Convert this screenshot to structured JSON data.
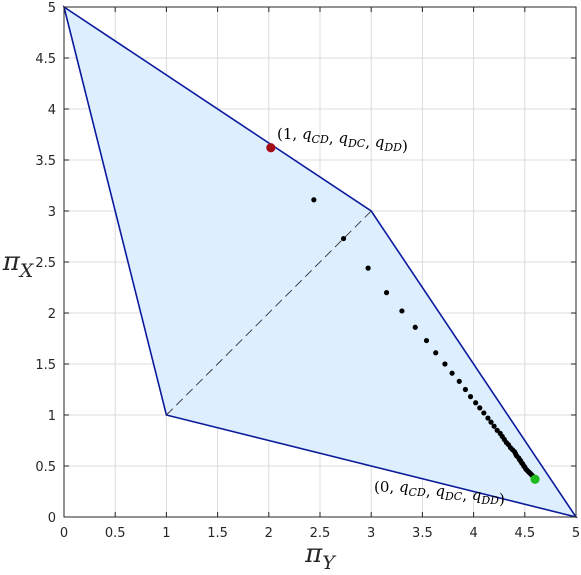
{
  "chart_data": {
    "type": "scatter",
    "title": "",
    "xlabel": "π_Y",
    "ylabel": "π_X",
    "xlim": [
      0,
      5
    ],
    "ylim": [
      0,
      5
    ],
    "xticks": [
      "0",
      "0.5",
      "1",
      "1.5",
      "2",
      "2.5",
      "3",
      "3.5",
      "4",
      "4.5",
      "5"
    ],
    "yticks": [
      "0",
      "0.5",
      "1",
      "1.5",
      "2",
      "2.5",
      "3",
      "3.5",
      "4",
      "4.5",
      "5"
    ],
    "grid": true,
    "feasible_region": {
      "vertices": [
        [
          0,
          5
        ],
        [
          3,
          3
        ],
        [
          5,
          0
        ],
        [
          1,
          1
        ]
      ],
      "fill_color": "#ddeeff",
      "edge_color": "#0b1a9c"
    },
    "dashed_line": {
      "from": [
        1,
        1
      ],
      "to": [
        3,
        3
      ]
    },
    "trajectory_points": [
      [
        2.44,
        3.11
      ],
      [
        2.73,
        2.73
      ],
      [
        2.97,
        2.44
      ],
      [
        3.15,
        2.2
      ],
      [
        3.3,
        2.02
      ],
      [
        3.43,
        1.86
      ],
      [
        3.54,
        1.73
      ],
      [
        3.63,
        1.61
      ],
      [
        3.72,
        1.5
      ],
      [
        3.79,
        1.41
      ],
      [
        3.86,
        1.33
      ],
      [
        3.92,
        1.25
      ],
      [
        3.97,
        1.18
      ],
      [
        4.02,
        1.12
      ],
      [
        4.06,
        1.07
      ],
      [
        4.1,
        1.02
      ],
      [
        4.14,
        0.97
      ],
      [
        4.17,
        0.93
      ],
      [
        4.2,
        0.89
      ],
      [
        4.23,
        0.85
      ],
      [
        4.26,
        0.82
      ],
      [
        4.28,
        0.79
      ],
      [
        4.3,
        0.76
      ],
      [
        4.32,
        0.73
      ],
      [
        4.34,
        0.71
      ],
      [
        4.36,
        0.68
      ],
      [
        4.38,
        0.66
      ],
      [
        4.4,
        0.64
      ],
      [
        4.41,
        0.62
      ],
      [
        4.42,
        0.6
      ],
      [
        4.44,
        0.58
      ],
      [
        4.45,
        0.56
      ],
      [
        4.46,
        0.55
      ],
      [
        4.47,
        0.53
      ],
      [
        4.48,
        0.52
      ],
      [
        4.49,
        0.5
      ],
      [
        4.5,
        0.49
      ],
      [
        4.51,
        0.47
      ],
      [
        4.52,
        0.46
      ],
      [
        4.53,
        0.45
      ],
      [
        4.54,
        0.44
      ],
      [
        4.55,
        0.43
      ],
      [
        4.56,
        0.42
      ],
      [
        4.57,
        0.41
      ],
      [
        4.58,
        0.4
      ],
      [
        4.59,
        0.39
      ]
    ],
    "highlight_points": [
      {
        "x": 2.02,
        "y": 3.62,
        "color": "#a30f15",
        "label": "(1, q_CD, q_DC, q_DD)"
      },
      {
        "x": 4.6,
        "y": 0.37,
        "color": "#1dbb1d",
        "label": "(0, q_CD, q_DC, q_DD)"
      }
    ]
  }
}
